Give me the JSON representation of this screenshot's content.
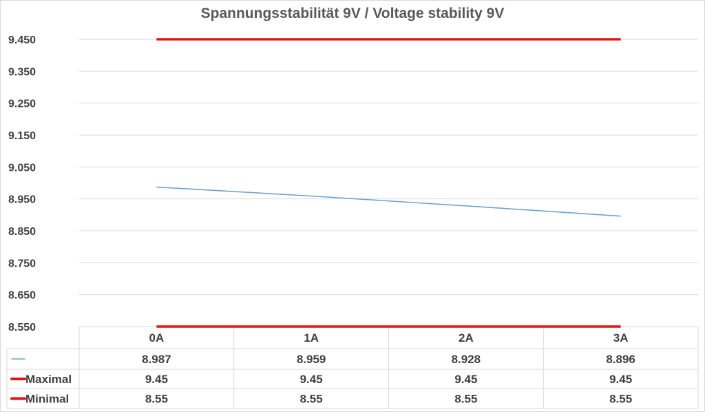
{
  "chart_data": {
    "type": "line",
    "title": "Spannungsstabilität 9V / Voltage stability 9V",
    "categories": [
      "0A",
      "1A",
      "2A",
      "3A"
    ],
    "ylim": [
      8.55,
      9.45
    ],
    "yticks": [
      "9.450",
      "9.350",
      "9.250",
      "9.150",
      "9.050",
      "8.950",
      "8.850",
      "8.750",
      "8.650",
      "8.550"
    ],
    "ytick_values": [
      9.45,
      9.35,
      9.25,
      9.15,
      9.05,
      8.95,
      8.85,
      8.75,
      8.65,
      8.55
    ],
    "grid": true,
    "legend": "data-table",
    "series": [
      {
        "name": "",
        "color": "#6fa2cc",
        "values": [
          8.987,
          8.959,
          8.928,
          8.896
        ],
        "labels": [
          "8.987",
          "8.959",
          "8.928",
          "8.896"
        ]
      },
      {
        "name": "Maximal",
        "color": "#e31414",
        "values": [
          9.45,
          9.45,
          9.45,
          9.45
        ],
        "labels": [
          "9.45",
          "9.45",
          "9.45",
          "9.45"
        ]
      },
      {
        "name": "Minimal",
        "color": "#e31414",
        "values": [
          8.55,
          8.55,
          8.55,
          8.55
        ],
        "labels": [
          "8.55",
          "8.55",
          "8.55",
          "8.55"
        ]
      }
    ]
  }
}
